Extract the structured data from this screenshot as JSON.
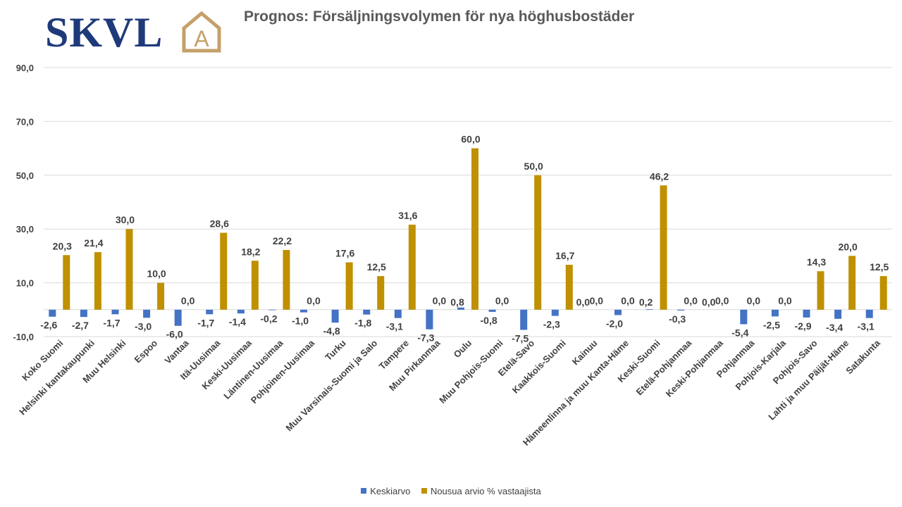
{
  "logo": {
    "text": "SKVL",
    "mark_letter": "A"
  },
  "chart_data": {
    "type": "bar",
    "title": "Prognos: Försäljningsvolymen för nya höghusbostäder",
    "ylim": [
      -10,
      90
    ],
    "yticks": [
      "90,0",
      "70,0",
      "50,0",
      "30,0",
      "10,0",
      "-10,0"
    ],
    "ytick_values": [
      90,
      70,
      50,
      30,
      10,
      -10
    ],
    "grid": true,
    "legend_position": "bottom",
    "categories": [
      "Koko Suomi",
      "Helsinki kantakaupunki",
      "Muu Helsinki",
      "Espoo",
      "Vantaa",
      "Itä-Uusimaa",
      "Keski-Uusimaa",
      "Läntinen-Uusimaa",
      "Pohjoinen-Uusimaa",
      "Turku",
      "Muu Varsinais-Suomi ja Salo",
      "Tampere",
      "Muu Pirkanmaa",
      "Oulu",
      "Muu Pohjois-Suomi",
      "Etelä-Savo",
      "Kaakkois-Suomi",
      "Kainuu",
      "Hämeenlinna ja muu Kanta-Häme",
      "Keski-Suomi",
      "Etelä-Pohjanmaa",
      "Keski-Pohjanmaa",
      "Pohjanmaa",
      "Pohjois-Karjala",
      "Pohjois-Savo",
      "Lahti ja muu Päijät-Häme",
      "Satakunta"
    ],
    "series": [
      {
        "name": "Keskiarvo",
        "color": "#4472c4",
        "values": [
          -2.6,
          -2.7,
          -1.7,
          -3.0,
          -6.0,
          -1.7,
          -1.4,
          -0.2,
          -1.0,
          -4.8,
          -1.8,
          -3.1,
          -7.3,
          0.8,
          -0.8,
          -7.5,
          -2.3,
          0.0,
          -2.0,
          0.2,
          -0.3,
          0.0,
          -5.4,
          -2.5,
          -2.9,
          -3.4,
          -3.1
        ],
        "labels": [
          "-2,6",
          "-2,7",
          "-1,7",
          "-3,0",
          "-6,0",
          "-1,7",
          "-1,4",
          "-0,2",
          "-1,0",
          "-4,8",
          "-1,8",
          "-3,1",
          "-7,3",
          "0,8",
          "-0,8",
          "-7,5",
          "-2,3",
          "0,0",
          "-2,0",
          "0,2",
          "-0,3",
          "0,0",
          "-5,4",
          "-2,5",
          "-2,9",
          "-3,4",
          "-3,1"
        ]
      },
      {
        "name": "Nousua arvio % vastaajista",
        "color": "#bf9000",
        "values": [
          20.3,
          21.4,
          30.0,
          10.0,
          0.0,
          28.6,
          18.2,
          22.2,
          0.0,
          17.6,
          12.5,
          31.6,
          0.0,
          60.0,
          0.0,
          50.0,
          16.7,
          0.0,
          0.0,
          46.2,
          0.0,
          0.0,
          0.0,
          0.0,
          14.3,
          20.0,
          12.5
        ],
        "labels": [
          "20,3",
          "21,4",
          "30,0",
          "10,0",
          "0,0",
          "28,6",
          "18,2",
          "22,2",
          "0,0",
          "17,6",
          "12,5",
          "31,6",
          "0,0",
          "60,0",
          "0,0",
          "50,0",
          "16,7",
          "0,0",
          "0,0",
          "46,2",
          "0,0",
          "0,0",
          "0,0",
          "0,0",
          "14,3",
          "20,0",
          "12,5"
        ]
      }
    ]
  }
}
